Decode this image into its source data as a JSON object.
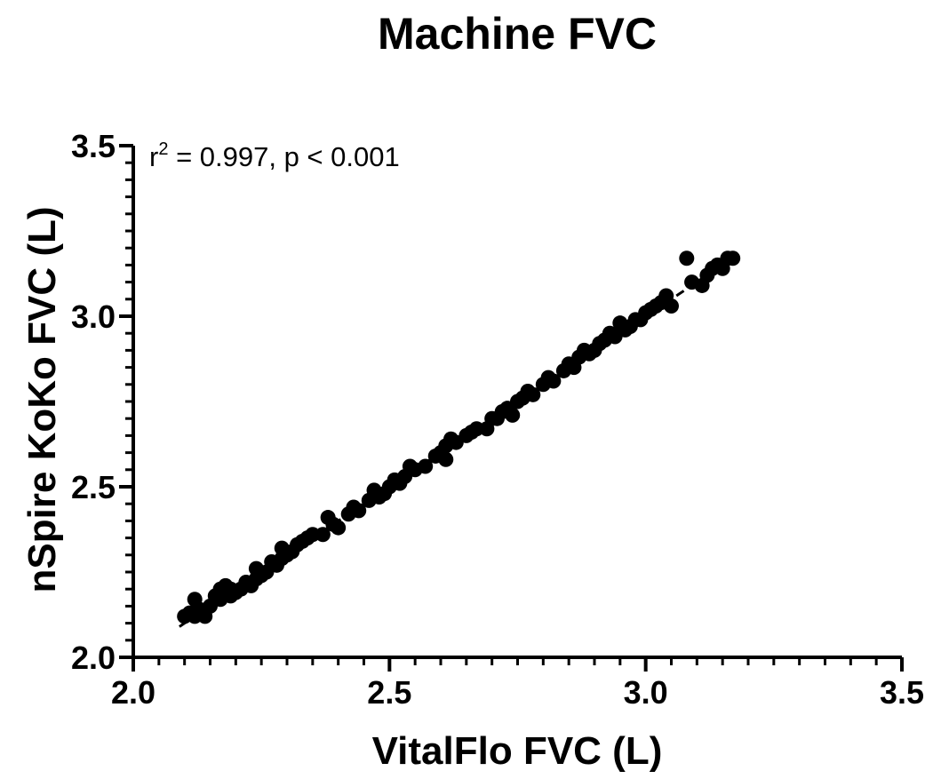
{
  "chart_data": {
    "type": "scatter",
    "title": "Machine FVC",
    "xlabel": "VitalFlo FVC (L)",
    "ylabel": "nSpire KoKo FVC (L)",
    "xlim": [
      2.0,
      3.5
    ],
    "ylim": [
      2.0,
      3.5
    ],
    "x_ticks": [
      "2.0",
      "2.5",
      "3.0",
      "3.5"
    ],
    "y_ticks": [
      "2.0",
      "2.5",
      "3.0",
      "3.5"
    ],
    "grid": false,
    "annotation": {
      "r_prefix": "r",
      "r_superscript": "2",
      "text": " = 0.997, p < 0.001"
    },
    "regression_line": {
      "style": "dashed",
      "x": [
        2.09,
        3.17
      ],
      "y": [
        2.09,
        3.17
      ]
    },
    "series": [
      {
        "marker": "filled-circle",
        "color": "#000000",
        "points": [
          [
            2.1,
            2.12
          ],
          [
            2.11,
            2.13
          ],
          [
            2.12,
            2.12
          ],
          [
            2.12,
            2.17
          ],
          [
            2.13,
            2.14
          ],
          [
            2.14,
            2.12
          ],
          [
            2.15,
            2.15
          ],
          [
            2.16,
            2.18
          ],
          [
            2.17,
            2.17
          ],
          [
            2.17,
            2.2
          ],
          [
            2.18,
            2.21
          ],
          [
            2.19,
            2.18
          ],
          [
            2.19,
            2.2
          ],
          [
            2.2,
            2.19
          ],
          [
            2.21,
            2.2
          ],
          [
            2.22,
            2.22
          ],
          [
            2.23,
            2.21
          ],
          [
            2.24,
            2.23
          ],
          [
            2.24,
            2.26
          ],
          [
            2.25,
            2.24
          ],
          [
            2.26,
            2.25
          ],
          [
            2.27,
            2.28
          ],
          [
            2.28,
            2.27
          ],
          [
            2.29,
            2.29
          ],
          [
            2.29,
            2.32
          ],
          [
            2.3,
            2.3
          ],
          [
            2.31,
            2.31
          ],
          [
            2.32,
            2.33
          ],
          [
            2.33,
            2.34
          ],
          [
            2.34,
            2.35
          ],
          [
            2.35,
            2.36
          ],
          [
            2.37,
            2.36
          ],
          [
            2.38,
            2.41
          ],
          [
            2.39,
            2.39
          ],
          [
            2.4,
            2.38
          ],
          [
            2.42,
            2.42
          ],
          [
            2.43,
            2.44
          ],
          [
            2.44,
            2.43
          ],
          [
            2.46,
            2.46
          ],
          [
            2.47,
            2.49
          ],
          [
            2.48,
            2.47
          ],
          [
            2.49,
            2.48
          ],
          [
            2.5,
            2.5
          ],
          [
            2.51,
            2.52
          ],
          [
            2.52,
            2.51
          ],
          [
            2.53,
            2.53
          ],
          [
            2.54,
            2.56
          ],
          [
            2.55,
            2.55
          ],
          [
            2.57,
            2.56
          ],
          [
            2.59,
            2.59
          ],
          [
            2.6,
            2.6
          ],
          [
            2.61,
            2.62
          ],
          [
            2.61,
            2.58
          ],
          [
            2.62,
            2.64
          ],
          [
            2.63,
            2.63
          ],
          [
            2.65,
            2.65
          ],
          [
            2.66,
            2.66
          ],
          [
            2.67,
            2.67
          ],
          [
            2.69,
            2.67
          ],
          [
            2.7,
            2.7
          ],
          [
            2.71,
            2.7
          ],
          [
            2.72,
            2.72
          ],
          [
            2.73,
            2.73
          ],
          [
            2.74,
            2.71
          ],
          [
            2.75,
            2.75
          ],
          [
            2.76,
            2.76
          ],
          [
            2.77,
            2.78
          ],
          [
            2.78,
            2.77
          ],
          [
            2.8,
            2.8
          ],
          [
            2.81,
            2.82
          ],
          [
            2.82,
            2.81
          ],
          [
            2.84,
            2.84
          ],
          [
            2.85,
            2.86
          ],
          [
            2.86,
            2.85
          ],
          [
            2.87,
            2.88
          ],
          [
            2.88,
            2.9
          ],
          [
            2.89,
            2.89
          ],
          [
            2.9,
            2.9
          ],
          [
            2.91,
            2.92
          ],
          [
            2.92,
            2.93
          ],
          [
            2.93,
            2.95
          ],
          [
            2.94,
            2.94
          ],
          [
            2.95,
            2.98
          ],
          [
            2.96,
            2.96
          ],
          [
            2.97,
            2.97
          ],
          [
            2.98,
            2.99
          ],
          [
            2.99,
            2.99
          ],
          [
            3.0,
            3.01
          ],
          [
            3.01,
            3.02
          ],
          [
            3.02,
            3.03
          ],
          [
            3.03,
            3.04
          ],
          [
            3.04,
            3.06
          ],
          [
            3.05,
            3.03
          ],
          [
            3.08,
            3.17
          ],
          [
            3.09,
            3.1
          ],
          [
            3.11,
            3.09
          ],
          [
            3.12,
            3.12
          ],
          [
            3.13,
            3.14
          ],
          [
            3.14,
            3.15
          ],
          [
            3.15,
            3.14
          ],
          [
            3.16,
            3.17
          ],
          [
            3.17,
            3.17
          ]
        ]
      }
    ]
  }
}
